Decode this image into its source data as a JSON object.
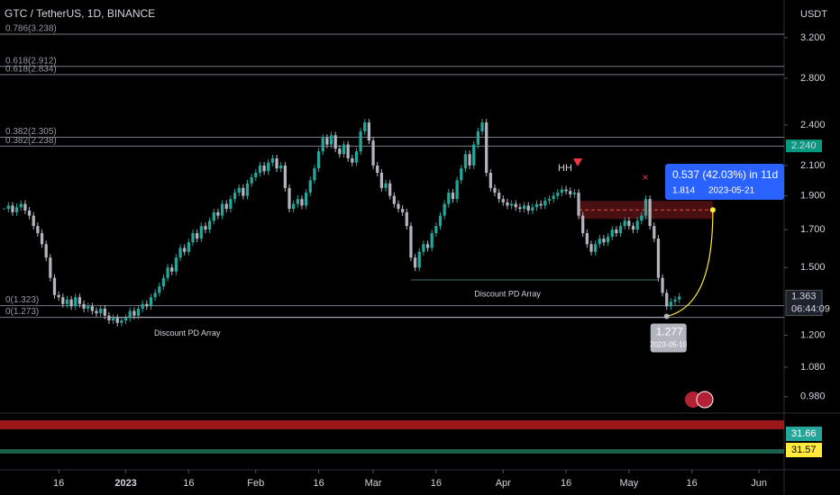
{
  "chart_data": {
    "type": "candlestick",
    "title": "GTC / TetherUS, 1D, BINANCE",
    "currency": "USDT",
    "x": [
      "2022-12-03",
      "2022-12-04",
      "2022-12-05",
      "2022-12-06",
      "2022-12-07",
      "2022-12-08",
      "2022-12-09",
      "2022-12-10",
      "2022-12-11",
      "2022-12-12",
      "2022-12-13",
      "2022-12-14",
      "2022-12-15",
      "2022-12-16",
      "2022-12-17",
      "2022-12-18",
      "2022-12-19",
      "2022-12-20",
      "2022-12-21",
      "2022-12-22",
      "2022-12-23",
      "2022-12-24",
      "2022-12-25",
      "2022-12-26",
      "2022-12-27",
      "2022-12-28",
      "2022-12-29",
      "2022-12-30",
      "2022-12-31",
      "2023-01-01",
      "2023-01-02",
      "2023-01-03",
      "2023-01-04",
      "2023-01-05",
      "2023-01-06",
      "2023-01-07",
      "2023-01-08",
      "2023-01-09",
      "2023-01-10",
      "2023-01-11",
      "2023-01-12",
      "2023-01-13",
      "2023-01-14",
      "2023-01-15",
      "2023-01-16",
      "2023-01-17",
      "2023-01-18",
      "2023-01-19",
      "2023-01-20",
      "2023-01-21",
      "2023-01-22",
      "2023-01-23",
      "2023-01-24",
      "2023-01-25",
      "2023-01-26",
      "2023-01-27",
      "2023-01-28",
      "2023-01-29",
      "2023-01-30",
      "2023-01-31",
      "2023-02-01",
      "2023-02-02",
      "2023-02-03",
      "2023-02-04",
      "2023-02-05",
      "2023-02-06",
      "2023-02-07",
      "2023-02-08",
      "2023-02-09",
      "2023-02-10",
      "2023-02-11",
      "2023-02-12",
      "2023-02-13",
      "2023-02-14",
      "2023-02-15",
      "2023-02-16",
      "2023-02-17",
      "2023-02-18",
      "2023-02-19",
      "2023-02-20",
      "2023-02-21",
      "2023-02-22",
      "2023-02-23",
      "2023-02-24",
      "2023-02-25",
      "2023-02-26",
      "2023-02-27",
      "2023-02-28",
      "2023-03-01",
      "2023-03-02",
      "2023-03-03",
      "2023-03-04",
      "2023-03-05",
      "2023-03-06",
      "2023-03-07",
      "2023-03-08",
      "2023-03-09",
      "2023-03-10",
      "2023-03-11",
      "2023-03-12",
      "2023-03-13",
      "2023-03-14",
      "2023-03-15",
      "2023-03-16",
      "2023-03-17",
      "2023-03-18",
      "2023-03-19",
      "2023-03-20",
      "2023-03-21",
      "2023-03-22",
      "2023-03-23",
      "2023-03-24",
      "2023-03-25",
      "2023-03-26",
      "2023-03-27",
      "2023-03-28",
      "2023-03-29",
      "2023-03-30",
      "2023-03-31",
      "2023-04-01",
      "2023-04-02",
      "2023-04-03",
      "2023-04-04",
      "2023-04-05",
      "2023-04-06",
      "2023-04-07",
      "2023-04-08",
      "2023-04-09",
      "2023-04-10",
      "2023-04-11",
      "2023-04-12",
      "2023-04-13",
      "2023-04-14",
      "2023-04-15",
      "2023-04-16",
      "2023-04-17",
      "2023-04-18",
      "2023-04-19",
      "2023-04-20",
      "2023-04-21",
      "2023-04-22",
      "2023-04-23",
      "2023-04-24",
      "2023-04-25",
      "2023-04-26",
      "2023-04-27",
      "2023-04-28",
      "2023-04-29",
      "2023-04-30",
      "2023-05-01",
      "2023-05-02",
      "2023-05-03",
      "2023-05-04",
      "2023-05-05",
      "2023-05-06",
      "2023-05-07",
      "2023-05-08",
      "2023-05-09",
      "2023-05-10",
      "2023-05-11",
      "2023-05-12",
      "2023-05-13"
    ],
    "close": [
      1.82,
      1.84,
      1.8,
      1.83,
      1.85,
      1.81,
      1.78,
      1.72,
      1.68,
      1.62,
      1.55,
      1.45,
      1.37,
      1.36,
      1.33,
      1.35,
      1.32,
      1.36,
      1.33,
      1.31,
      1.32,
      1.3,
      1.29,
      1.31,
      1.28,
      1.26,
      1.27,
      1.25,
      1.26,
      1.27,
      1.3,
      1.28,
      1.31,
      1.33,
      1.32,
      1.36,
      1.38,
      1.41,
      1.45,
      1.5,
      1.48,
      1.55,
      1.6,
      1.58,
      1.63,
      1.68,
      1.65,
      1.72,
      1.7,
      1.75,
      1.8,
      1.78,
      1.85,
      1.82,
      1.88,
      1.92,
      1.95,
      1.9,
      1.98,
      2.02,
      2.05,
      2.1,
      2.06,
      2.12,
      2.15,
      2.08,
      2.1,
      1.95,
      1.82,
      1.85,
      1.88,
      1.84,
      1.92,
      2.0,
      2.08,
      2.2,
      2.3,
      2.25,
      2.32,
      2.22,
      2.18,
      2.25,
      2.15,
      2.12,
      2.2,
      2.35,
      2.42,
      2.28,
      2.1,
      2.05,
      1.95,
      1.98,
      1.9,
      1.85,
      1.82,
      1.8,
      1.72,
      1.55,
      1.5,
      1.58,
      1.62,
      1.6,
      1.68,
      1.72,
      1.78,
      1.85,
      1.92,
      1.88,
      2.0,
      2.08,
      2.18,
      2.1,
      2.25,
      2.35,
      2.42,
      2.05,
      1.95,
      1.92,
      1.88,
      1.86,
      1.84,
      1.85,
      1.83,
      1.82,
      1.84,
      1.81,
      1.83,
      1.85,
      1.84,
      1.87,
      1.88,
      1.9,
      1.92,
      1.94,
      1.93,
      1.91,
      1.92,
      1.78,
      1.68,
      1.62,
      1.58,
      1.62,
      1.65,
      1.63,
      1.66,
      1.7,
      1.68,
      1.72,
      1.75,
      1.72,
      1.7,
      1.75,
      1.78,
      1.88,
      1.72,
      1.65,
      1.45,
      1.38,
      1.32,
      1.34,
      1.35,
      1.363
    ],
    "up_color": "#26a69a",
    "down_color": "#b2b5be",
    "log_scale": true,
    "xlim": [
      "2022-12-02",
      "2023-06-07"
    ],
    "xticks": [
      {
        "value": "2022-12-16",
        "label": "16"
      },
      {
        "value": "2023-01-01",
        "label": "2023"
      },
      {
        "value": "2023-01-16",
        "label": "16"
      },
      {
        "value": "2023-02-01",
        "label": "Feb"
      },
      {
        "value": "2023-02-16",
        "label": "16"
      },
      {
        "value": "2023-03-01",
        "label": "Mar"
      },
      {
        "value": "2023-03-16",
        "label": "16"
      },
      {
        "value": "2023-04-01",
        "label": "Apr"
      },
      {
        "value": "2023-04-16",
        "label": "16"
      },
      {
        "value": "2023-05-01",
        "label": "May"
      },
      {
        "value": "2023-05-16",
        "label": "16"
      },
      {
        "value": "2023-06-01",
        "label": "Jun"
      }
    ],
    "ylim": [
      0.931,
      3.624
    ],
    "yticks": [
      {
        "value": 3.2,
        "label": "3.200"
      },
      {
        "value": 2.8,
        "label": "2.800"
      },
      {
        "value": 2.4,
        "label": "2.400"
      },
      {
        "value": 2.1,
        "label": "2.100"
      },
      {
        "value": 1.9,
        "label": "1.900"
      },
      {
        "value": 1.7,
        "label": "1.700"
      },
      {
        "value": 1.5,
        "label": "1.500"
      },
      {
        "value": 1.2,
        "label": "1.200"
      },
      {
        "value": 1.08,
        "label": "1.080"
      },
      {
        "value": 0.98,
        "label": "0.980"
      }
    ],
    "fib_levels": [
      {
        "label": "0.786(3.238)",
        "value": 3.238
      },
      {
        "label": "0.618(2.912)",
        "value": 2.912
      },
      {
        "label": "0.618(2.834)",
        "value": 2.834
      },
      {
        "label": "0.382(2.305)",
        "value": 2.305
      },
      {
        "label": "0.382(2.238)",
        "value": 2.238
      },
      {
        "label": "0(1.323)",
        "value": 1.323
      },
      {
        "label": "0(1.273)",
        "value": 1.273
      }
    ],
    "price_marks": [
      {
        "label": "2.240",
        "value": 2.24,
        "color": "#089981"
      },
      {
        "label": "1.363",
        "value": 1.363,
        "color": "#1e222d",
        "countdown": "06:44:09"
      }
    ],
    "discount_arrays": [
      {
        "label": "Discount PD Array",
        "value": 1.273,
        "start": "2022-12-28",
        "end": "2023-05-10"
      },
      {
        "label": "Discount PD Array",
        "value": 1.44,
        "start": "2023-03-10",
        "end": "2023-05-08"
      }
    ],
    "hh_label": "HH",
    "projection": {
      "label": "0.537 (42.03%) in 11d",
      "from": {
        "x": "2023-05-10",
        "value": 1.277,
        "label": "1.277",
        "date": "2023-05-10"
      },
      "to": {
        "x": "2023-05-21",
        "value": 1.814,
        "label": "1.814",
        "date": "2023-05-21"
      }
    },
    "indicator_marks": [
      {
        "label": "31.66",
        "color": "#26a69a"
      },
      {
        "label": "31.57",
        "color": "#ffeb3b"
      }
    ]
  }
}
